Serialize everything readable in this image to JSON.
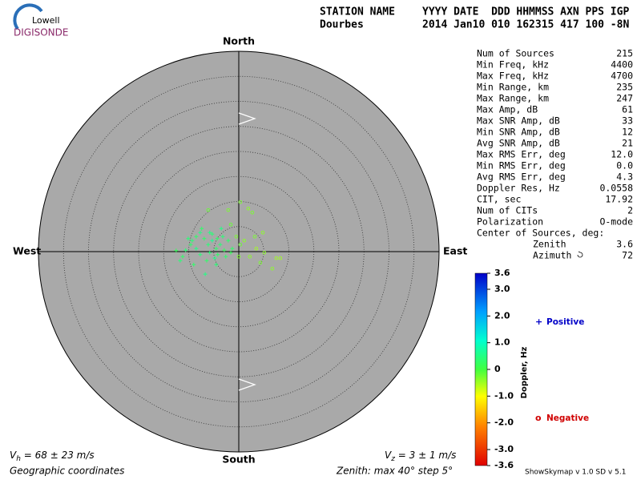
{
  "logo": {
    "top": "Lowell",
    "bottom": "DIGISONDE"
  },
  "header": {
    "station_label": "STATION NAME",
    "fields_label": "YYYY DATE  DDD HHMMSS AXN PPS IGP",
    "station": "Dourbes",
    "fields": "2014 Jan10 010 162315 417 100 -8N"
  },
  "stats": {
    "rows": [
      [
        "Num of Sources",
        "215"
      ],
      [
        "Min Freq, kHz",
        "4400"
      ],
      [
        "Max Freq, kHz",
        "4700"
      ],
      [
        "Min Range, km",
        "235"
      ],
      [
        "Max Range, km",
        "247"
      ],
      [
        "Max Amp, dB",
        "61"
      ],
      [
        "Max SNR Amp, dB",
        "33"
      ],
      [
        "Min SNR Amp, dB",
        "12"
      ],
      [
        "Avg SNR Amp, dB",
        "21"
      ],
      [
        "Max RMS Err, deg",
        "12.0"
      ],
      [
        "Min RMS Err, deg",
        "0.0"
      ],
      [
        "Avg RMS Err, deg",
        "4.3"
      ],
      [
        "Doppler Res, Hz",
        "0.0558"
      ],
      [
        "CIT, sec",
        "17.92"
      ],
      [
        "Num of CITs",
        "2"
      ],
      [
        "Polarization",
        "O-mode"
      ]
    ],
    "center_label": "Center of Sources, deg:",
    "center_rows": [
      [
        "Zenith",
        "3.6"
      ],
      [
        "Azimuth",
        "72"
      ]
    ]
  },
  "chart_data": {
    "type": "skymap",
    "directions": {
      "north": "North",
      "south": "South",
      "east": "East",
      "west": "West"
    },
    "xlim": [
      -40,
      40
    ],
    "ylim": [
      -40,
      40
    ],
    "rings": [
      5,
      10,
      15,
      20,
      25,
      30,
      35
    ],
    "series": [
      {
        "name": "Positive",
        "color": "#0000c8",
        "marker": "+"
      },
      {
        "name": "Negative",
        "color": "#d00000",
        "marker": "o"
      }
    ],
    "points": {
      "x": [
        -9.3,
        -8.5,
        -7.7,
        -6.9,
        -6.1,
        -5.3,
        -4.5,
        -3.7,
        -2.9,
        -4.2,
        -4.8,
        -5.8,
        -6.4,
        -7.7,
        -8.5,
        -9.6,
        -10.6,
        -11.2,
        -12.5,
        -11.7,
        -9.0,
        -6.7,
        -4.5,
        -2.6,
        -1.6,
        -2.1,
        -3.2,
        -1.3,
        -3.5,
        -5.3,
        -7.4,
        -10.1,
        -5.8,
        -4.3,
        0.3,
        1.9,
        2.7,
        -1.6,
        -0.5,
        1.1,
        3.5,
        5.1,
        7.5,
        6.7,
        4.3,
        2.2,
        0.3,
        0.0,
        8.3,
        4.8,
        3.2,
        -6.1,
        -2.1
      ],
      "y": [
        2.2,
        3.0,
        3.8,
        2.6,
        1.4,
        2.2,
        0.6,
        1.4,
        0.3,
        -0.6,
        -1.3,
        -0.2,
        -1.8,
        -0.6,
        0.6,
        1.4,
        0.3,
        -1.0,
        0.2,
        -1.8,
        -2.6,
        -4.5,
        -2.6,
        -1.0,
        -0.2,
        2.2,
        3.0,
        0.6,
        4.6,
        3.5,
        4.6,
        2.6,
        3.8,
        2.6,
        9.9,
        8.6,
        7.8,
        5.4,
        3.0,
        2.2,
        0.6,
        -0.2,
        -1.3,
        -3.4,
        -2.2,
        -1.0,
        1.4,
        -1.0,
        -1.3,
        3.8,
        3.0,
        8.3,
        8.3
      ],
      "doppler": [
        0.4,
        0.3,
        0.5,
        0.3,
        0.4,
        0.6,
        0.3,
        0.4,
        0.2,
        0.3,
        0.5,
        0.4,
        0.3,
        0.4,
        0.5,
        0.3,
        0.4,
        0.3,
        0.2,
        0.4,
        0.3,
        0.5,
        0.4,
        0.3,
        0.2,
        0.3,
        0.4,
        0.3,
        0.5,
        0.4,
        0.3,
        0.4,
        0.5,
        0.3,
        -0.3,
        -0.4,
        -0.3,
        -0.2,
        -0.3,
        -0.4,
        -0.5,
        -0.4,
        -0.5,
        -0.4,
        -0.3,
        -0.4,
        -0.2,
        -0.3,
        -0.5,
        -0.4,
        -0.3,
        -0.2,
        -0.3
      ]
    },
    "colorbar": {
      "title": "Doppler, Hz",
      "lim": [
        -3.6,
        3.6
      ],
      "ticks": [
        3.6,
        {
          "value": 3,
          "label": "3.0"
        },
        {
          "value": 2,
          "label": "2.0"
        },
        {
          "value": 1,
          "label": "1.0"
        },
        0,
        {
          "value": -1,
          "label": "-1.0"
        },
        {
          "value": -2,
          "label": "-2.0"
        },
        {
          "value": -3,
          "label": "-3.0"
        },
        -3.6
      ]
    }
  },
  "footer": {
    "vh_symbol": "V",
    "vh_sub": "h",
    "vh_text": " = 68 ± 23 m/s",
    "vz_symbol": "V",
    "vz_sub": "z",
    "vz_text": " = 3 ± 1 m/s",
    "coords": "Geographic coordinates",
    "zenith": "Zenith: max 40°  step 5°",
    "version": "ShowSkymap v 1.0  SD v 5.1"
  }
}
